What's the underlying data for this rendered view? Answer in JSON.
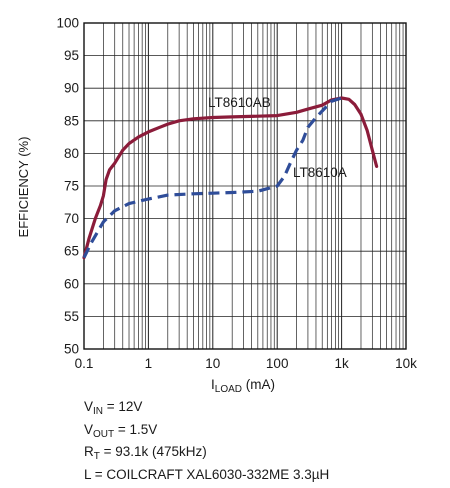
{
  "chart_data": {
    "type": "line",
    "title": "",
    "xlabel": {
      "main": "I",
      "sub": "LOAD",
      "rest": " (mA)"
    },
    "ylabel": "EFFICIENCY (%)",
    "xscale": "log",
    "xlim": [
      0.1,
      10000
    ],
    "ylim": [
      50,
      100
    ],
    "grid": true,
    "x_tick_labels": [
      "0.1",
      "1",
      "10",
      "100",
      "1k",
      "10k"
    ],
    "x_tick_values": [
      0.1,
      1,
      10,
      100,
      1000,
      10000
    ],
    "y_tick_values": [
      50,
      55,
      60,
      65,
      70,
      75,
      80,
      85,
      90,
      95,
      100
    ],
    "series": [
      {
        "name": "LT8610AB",
        "style": "solid",
        "color": "#8b1c3a",
        "points": [
          [
            0.1,
            64
          ],
          [
            0.12,
            67
          ],
          [
            0.15,
            70
          ],
          [
            0.18,
            72
          ],
          [
            0.2,
            73.5
          ],
          [
            0.22,
            76
          ],
          [
            0.25,
            77.5
          ],
          [
            0.3,
            78.5
          ],
          [
            0.4,
            80.5
          ],
          [
            0.5,
            81.5
          ],
          [
            0.7,
            82.5
          ],
          [
            1,
            83.3
          ],
          [
            1.5,
            84
          ],
          [
            2,
            84.5
          ],
          [
            3,
            85
          ],
          [
            5,
            85.3
          ],
          [
            10,
            85.5
          ],
          [
            20,
            85.6
          ],
          [
            50,
            85.7
          ],
          [
            100,
            85.8
          ],
          [
            200,
            86.3
          ],
          [
            300,
            86.8
          ],
          [
            500,
            87.4
          ],
          [
            700,
            88.2
          ],
          [
            1000,
            88.5
          ],
          [
            1300,
            88.3
          ],
          [
            1600,
            87.5
          ],
          [
            2000,
            86
          ],
          [
            2500,
            83.5
          ],
          [
            3000,
            80.5
          ],
          [
            3500,
            78
          ]
        ]
      },
      {
        "name": "LT8610A",
        "style": "dashed",
        "color": "#2f4d99",
        "points": [
          [
            0.1,
            64
          ],
          [
            0.13,
            66.3
          ],
          [
            0.2,
            69.5
          ],
          [
            0.3,
            71.2
          ],
          [
            0.5,
            72.3
          ],
          [
            1,
            73
          ],
          [
            2,
            73.6
          ],
          [
            5,
            73.8
          ],
          [
            10,
            73.9
          ],
          [
            20,
            74
          ],
          [
            50,
            74.2
          ],
          [
            100,
            75
          ],
          [
            130,
            76.5
          ],
          [
            160,
            78.5
          ],
          [
            200,
            80.5
          ],
          [
            250,
            82
          ],
          [
            300,
            84
          ],
          [
            400,
            85.5
          ],
          [
            500,
            86.5
          ],
          [
            700,
            88
          ],
          [
            1000,
            88.5
          ]
        ]
      }
    ],
    "annotations": [
      "LT8610AB",
      "LT8610A"
    ]
  },
  "notes": [
    {
      "main": "V",
      "sub": "IN",
      "rest": " = 12V"
    },
    {
      "main": "V",
      "sub": "OUT",
      "rest": " = 1.5V"
    },
    {
      "main": "R",
      "sub": "T",
      "rest": " = 93.1k (475kHz)"
    },
    {
      "main": "L = COILCRAFT XAL6030-332ME 3.3µH",
      "sub": "",
      "rest": ""
    }
  ]
}
